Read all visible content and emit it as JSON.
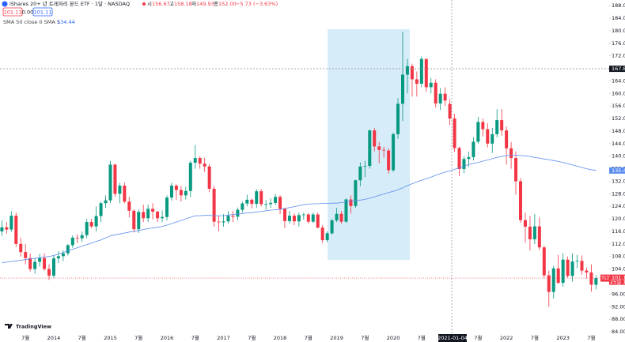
{
  "header": {
    "symbol": "iShares 20+ 년 트레저리 본드 ETF · 1달 · NASDAQ",
    "ohlc": [
      {
        "label": "시",
        "value": "156.67"
      },
      {
        "label": "고",
        "value": "158.18"
      },
      {
        "label": "저",
        "value": "149.93"
      },
      {
        "label": "종",
        "value": "152.00"
      }
    ],
    "change": "−5.73 (−3.63%)",
    "boxes": [
      "101.11",
      "0.00",
      "101.11"
    ],
    "indicator": "SMA 50 close 0 SMA 5",
    "indicator_value": "134.44",
    "logo": "TradingView"
  },
  "chart_data": {
    "type": "candlestick",
    "categories": [
      null,
      null,
      null,
      null,
      null,
      "7월",
      null,
      null,
      null,
      null,
      null,
      "2014",
      null,
      null,
      null,
      null,
      null,
      "7월",
      null,
      null,
      null,
      null,
      null,
      "2015",
      null,
      null,
      null,
      null,
      null,
      "7월",
      null,
      null,
      null,
      null,
      null,
      "2016",
      null,
      null,
      null,
      null,
      null,
      "7월",
      null,
      null,
      null,
      null,
      null,
      "2017",
      null,
      null,
      null,
      null,
      null,
      "7월",
      null,
      null,
      null,
      null,
      null,
      "2018",
      null,
      null,
      null,
      null,
      null,
      "7월",
      null,
      null,
      null,
      null,
      null,
      "2019",
      null,
      null,
      null,
      null,
      null,
      "7월",
      null,
      null,
      null,
      null,
      null,
      "2020",
      null,
      null,
      null,
      null,
      null,
      "7월",
      null,
      null,
      null,
      null,
      null,
      null,
      null,
      null,
      null,
      null,
      null,
      "7월",
      null,
      null,
      null,
      null,
      null,
      "2022",
      null,
      null,
      null,
      null,
      null,
      "7월",
      null,
      null,
      null,
      null,
      null,
      "2023",
      null,
      null,
      null,
      null,
      null,
      "7월",
      null
    ],
    "open": [
      116.0,
      117.3,
      116.6,
      121.0,
      112.0,
      109.4,
      107.5,
      104.0,
      106.3,
      107.5,
      104.0,
      101.9,
      107.4,
      108.1,
      109.0,
      111.6,
      114.0,
      113.8,
      114.8,
      119.0,
      117.6,
      120.9,
      125.0,
      125.9,
      137.3,
      128.0,
      130.6,
      125.5,
      122.6,
      116.7,
      122.2,
      120.2,
      123.2,
      122.3,
      120.2,
      120.6,
      126.8,
      130.6,
      129.2,
      127.5,
      128.9,
      137.9,
      139.4,
      137.6,
      136.7,
      129.6,
      119.1,
      118.9,
      119.2,
      121.0,
      120.7,
      122.9,
      124.9,
      126.1,
      124.8,
      128.8,
      124.7,
      124.7,
      125.1,
      127.0,
      123.2,
      119.3,
      121.0,
      119.2,
      121.2,
      121.4,
      119.1,
      121.4,
      117.2,
      113.2,
      115.4,
      119.5,
      121.6,
      119.1,
      126.2,
      124.1,
      132.3,
      136.7,
      136.9,
      148.2,
      143.1,
      142.0,
      141.8,
      135.5,
      147.0,
      156.7,
      166.0,
      168.7,
      164.5,
      163.1,
      171.0,
      162.0,
      163.4,
      156.8,
      159.9,
      156.67,
      152.0,
      142.6,
      135.9,
      139.1,
      139.7,
      144.6,
      150.9,
      148.6,
      144.0,
      147.0,
      151.5,
      148.2,
      142.5,
      139.4,
      132.0,
      119.6,
      117.5,
      113.5,
      117.6,
      110.9,
      102.0,
      96.7,
      104.2,
      99.6,
      107.0,
      101.8,
      106.4,
      106.6,
      103.5,
      102.9,
      99.0
    ],
    "high": [
      119.5,
      119.0,
      122.4,
      122.0,
      114.0,
      112.0,
      109.0,
      107.5,
      108.8,
      109.0,
      105.5,
      108.5,
      109.7,
      110.0,
      112.0,
      114.7,
      115.0,
      116.0,
      120.0,
      120.0,
      124.0,
      125.5,
      127.5,
      138.5,
      137.5,
      131.5,
      131.5,
      127.0,
      123.0,
      123.0,
      124.5,
      124.5,
      125.0,
      122.5,
      122.7,
      127.5,
      131.5,
      131.0,
      130.5,
      130.2,
      138.5,
      143.6,
      140.0,
      139.5,
      137.5,
      130.5,
      121.0,
      121.5,
      122.5,
      122.5,
      123.6,
      125.5,
      127.7,
      126.5,
      129.5,
      129.5,
      126.0,
      126.5,
      128.0,
      127.5,
      123.5,
      122.5,
      121.7,
      122.0,
      122.0,
      121.8,
      122.0,
      122.0,
      118.0,
      116.0,
      120.0,
      123.5,
      122.5,
      126.5,
      127.5,
      132.5,
      138.0,
      138.5,
      148.5,
      149.0,
      144.5,
      143.0,
      142.5,
      147.5,
      158.5,
      179.7,
      171.0,
      169.5,
      167.0,
      171.8,
      171.0,
      165.0,
      164.5,
      161.7,
      162.0,
      158.18,
      153.5,
      143.0,
      140.0,
      141.5,
      146.0,
      152.5,
      152.0,
      150.5,
      149.0,
      155.0,
      155.0,
      149.5,
      144.5,
      141.5,
      133.0,
      122.0,
      121.0,
      121.5,
      120.5,
      111.5,
      103.5,
      105.0,
      108.5,
      109.0,
      108.0,
      109.0,
      108.5,
      108.3,
      104.5,
      105.5,
      102.0
    ],
    "low": [
      114.5,
      115.3,
      115.9,
      111.0,
      108.0,
      105.5,
      103.2,
      102.5,
      104.8,
      103.5,
      100.5,
      101.0,
      105.9,
      106.5,
      108.3,
      110.8,
      112.3,
      112.7,
      113.8,
      117.0,
      116.0,
      119.0,
      123.5,
      125.0,
      127.0,
      125.0,
      125.0,
      120.5,
      115.7,
      115.5,
      119.0,
      119.0,
      119.8,
      119.0,
      119.0,
      119.5,
      125.8,
      126.0,
      125.5,
      126.2,
      127.0,
      136.0,
      136.0,
      135.0,
      128.5,
      117.5,
      116.0,
      117.5,
      118.5,
      119.0,
      119.5,
      122.0,
      124.0,
      123.3,
      123.5,
      124.0,
      123.0,
      123.5,
      124.4,
      121.5,
      117.0,
      118.5,
      118.0,
      117.6,
      119.7,
      118.5,
      118.7,
      117.0,
      112.3,
      112.6,
      115.0,
      119.0,
      118.5,
      118.7,
      121.7,
      123.5,
      130.4,
      133.3,
      136.0,
      141.5,
      137.7,
      139.5,
      134.4,
      135.0,
      145.5,
      151.2,
      160.0,
      159.0,
      159.0,
      162.0,
      160.5,
      160.0,
      155.5,
      154.7,
      156.0,
      149.93,
      141.4,
      133.6,
      134.5,
      136.6,
      138.6,
      144.0,
      146.3,
      142.8,
      141.0,
      146.0,
      146.5,
      137.3,
      136.0,
      127.7,
      118.7,
      112.5,
      109.9,
      112.0,
      110.0,
      101.0,
      91.9,
      94.6,
      99.3,
      98.4,
      101.2,
      100.0,
      104.3,
      102.2,
      101.0,
      96.8,
      97.5
    ],
    "close": [
      117.3,
      116.6,
      121.0,
      112.0,
      109.4,
      107.5,
      104.0,
      106.3,
      107.5,
      104.0,
      101.9,
      107.4,
      108.1,
      109.0,
      111.6,
      114.0,
      113.8,
      114.8,
      119.0,
      117.6,
      120.9,
      125.0,
      125.9,
      137.3,
      128.0,
      130.6,
      125.5,
      122.6,
      116.7,
      122.2,
      120.2,
      123.2,
      122.3,
      120.2,
      120.6,
      126.8,
      130.6,
      129.2,
      127.5,
      128.9,
      137.9,
      139.4,
      137.6,
      136.7,
      129.6,
      119.1,
      118.9,
      119.2,
      121.0,
      120.7,
      122.9,
      124.9,
      126.1,
      124.8,
      128.8,
      124.7,
      124.7,
      125.1,
      127.0,
      123.2,
      119.3,
      121.0,
      119.2,
      121.2,
      121.4,
      119.1,
      121.4,
      117.2,
      113.2,
      115.4,
      119.5,
      121.6,
      119.1,
      126.2,
      124.1,
      132.3,
      136.7,
      136.9,
      148.2,
      143.1,
      142.0,
      141.8,
      135.5,
      147.0,
      156.7,
      166.0,
      168.7,
      164.5,
      163.1,
      171.0,
      162.0,
      163.4,
      156.8,
      159.9,
      157.73,
      152.0,
      142.6,
      135.9,
      139.1,
      139.7,
      144.6,
      150.9,
      148.6,
      144.0,
      147.0,
      151.5,
      148.2,
      142.5,
      139.4,
      132.0,
      119.6,
      117.5,
      113.5,
      117.6,
      110.9,
      102.0,
      96.7,
      104.2,
      99.6,
      107.0,
      101.8,
      106.4,
      106.6,
      103.5,
      102.9,
      99.0,
      101.11
    ],
    "up_color": "#089981",
    "down_color": "#f23645",
    "sma": {
      "color": "#5b8def",
      "values": [
        106.0,
        106.2,
        106.4,
        106.6,
        106.8,
        107.0,
        107.2,
        107.4,
        107.6,
        107.8,
        108.0,
        108.3,
        108.8,
        109.3,
        109.8,
        110.3,
        110.8,
        111.3,
        111.8,
        112.3,
        112.8,
        113.3,
        113.9,
        114.6,
        114.9,
        115.2,
        115.5,
        115.8,
        116.0,
        116.3,
        116.6,
        116.9,
        117.1,
        117.3,
        117.6,
        118.0,
        118.5,
        119.0,
        119.5,
        120.0,
        120.5,
        121.0,
        121.0,
        121.1,
        121.1,
        121.0,
        121.0,
        121.0,
        121.2,
        121.4,
        121.5,
        121.7,
        121.9,
        122.0,
        122.2,
        122.4,
        122.6,
        122.8,
        122.9,
        123.0,
        123.3,
        123.6,
        123.9,
        124.2,
        124.5,
        124.7,
        124.8,
        124.8,
        124.9,
        124.9,
        125.0,
        125.0,
        125.2,
        125.4,
        125.6,
        125.8,
        126.0,
        126.2,
        126.6,
        127.0,
        127.5,
        127.9,
        128.4,
        128.8,
        129.3,
        129.9,
        130.6,
        131.2,
        131.8,
        132.3,
        132.8,
        133.3,
        133.9,
        134.4,
        134.9,
        135.3,
        135.8,
        136.3,
        136.8,
        137.3,
        137.7,
        138.0,
        138.4,
        138.8,
        139.2,
        139.6,
        139.9,
        140.2,
        140.3,
        140.3,
        140.2,
        140.1,
        139.9,
        139.6,
        139.4,
        139.1,
        138.9,
        138.6,
        138.3,
        138.0,
        137.6,
        137.2,
        136.8,
        136.4,
        136.0,
        135.7,
        135.43
      ]
    },
    "ylim": [
      83.5,
      189.8
    ],
    "yticks": [
      {
        "value": 84,
        "label": "84.00"
      },
      {
        "value": 88,
        "label": "88.00"
      },
      {
        "value": 92,
        "label": "92.00"
      },
      {
        "value": 96,
        "label": "96.00"
      },
      {
        "value": 100,
        "label": "100.00"
      },
      {
        "value": 104,
        "label": "104.00"
      },
      {
        "value": 108,
        "label": "108.00"
      },
      {
        "value": 112,
        "label": "112.00"
      },
      {
        "value": 116,
        "label": "116.00"
      },
      {
        "value": 120,
        "label": "120.00"
      },
      {
        "value": 124,
        "label": "124.00"
      },
      {
        "value": 128,
        "label": "128.00"
      },
      {
        "value": 132,
        "label": "132.00"
      },
      {
        "value": 136,
        "label": "136.00"
      },
      {
        "value": 140,
        "label": "140.00"
      },
      {
        "value": 144,
        "label": "144.00"
      },
      {
        "value": 148,
        "label": "148.00"
      },
      {
        "value": 152,
        "label": "152.00"
      },
      {
        "value": 156,
        "label": "156.00"
      },
      {
        "value": 160,
        "label": "160.00"
      },
      {
        "value": 164,
        "label": "164.00"
      },
      {
        "value": 168,
        "label": "168.00"
      },
      {
        "value": 172,
        "label": "172.00"
      },
      {
        "value": 176,
        "label": "176.00"
      },
      {
        "value": 180,
        "label": "180.00"
      },
      {
        "value": 184,
        "label": "184.00"
      },
      {
        "value": 188,
        "label": "188.00"
      }
    ],
    "grid": false,
    "crosshair": {
      "date": "2021-01-04",
      "price": 167.87
    },
    "last_tag": {
      "symbol": "TLT",
      "countdown": "25일 16시"
    }
  }
}
